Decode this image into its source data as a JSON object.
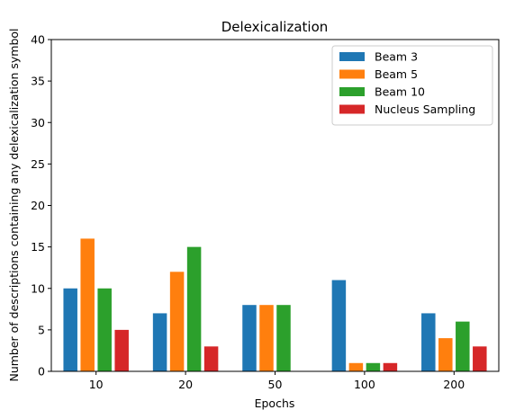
{
  "chart_data": {
    "type": "bar",
    "title": "Delexicalization",
    "xlabel": "Epochs",
    "ylabel": "Number of descriptions containing any delexicalization symbol",
    "categories": [
      "10",
      "20",
      "50",
      "100",
      "200"
    ],
    "ylim": [
      0,
      40
    ],
    "yticks": [
      "0",
      "5",
      "10",
      "15",
      "20",
      "25",
      "30",
      "35",
      "40"
    ],
    "grid": false,
    "legend_position": "top-right",
    "series": [
      {
        "name": "Beam 3",
        "color": "#1f77b4",
        "values": [
          10,
          7,
          8,
          11,
          7
        ]
      },
      {
        "name": "Beam 5",
        "color": "#ff7f0e",
        "values": [
          16,
          12,
          8,
          1,
          4
        ]
      },
      {
        "name": "Beam 10",
        "color": "#2ca02c",
        "values": [
          10,
          15,
          8,
          1,
          6
        ]
      },
      {
        "name": "Nucleus Sampling",
        "color": "#d62728",
        "values": [
          5,
          3,
          0,
          1,
          3
        ]
      }
    ]
  }
}
